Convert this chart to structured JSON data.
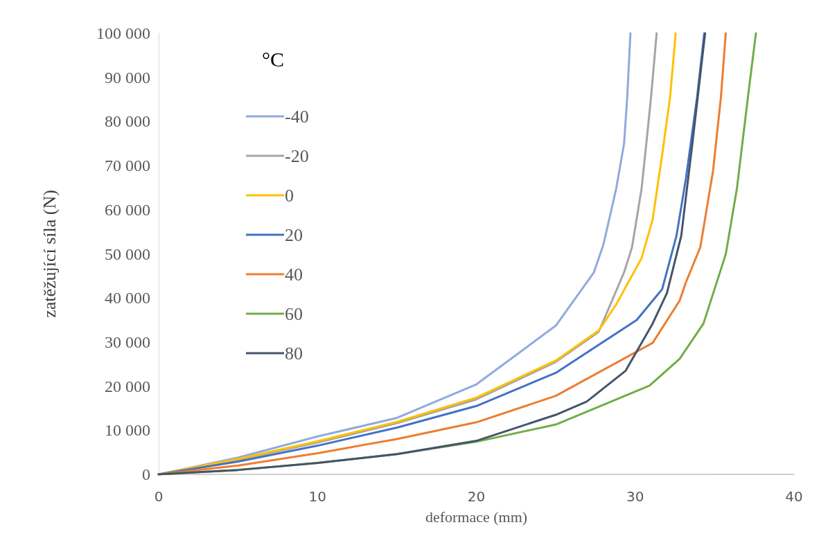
{
  "chart_data": {
    "type": "line",
    "xlabel": "deformace (mm)",
    "ylabel": "zatěžující síla (N)",
    "legend_title": "°C",
    "legend": "top left",
    "grid": false,
    "marker": "none",
    "line_style": "solid",
    "xlim": [
      0,
      40
    ],
    "xticks": [
      0,
      10,
      20,
      30,
      40
    ],
    "ylim": [
      0,
      100000
    ],
    "yticks": [
      0,
      {
        "value": 10000,
        "label": "10 000"
      },
      {
        "value": 20000,
        "label": "20 000"
      },
      {
        "value": 30000,
        "label": "30 000"
      },
      {
        "value": 40000,
        "label": "40 000"
      },
      {
        "value": 50000,
        "label": "50 000"
      },
      {
        "value": 60000,
        "label": "60 000"
      },
      {
        "value": 70000,
        "label": "70 000"
      },
      {
        "value": 80000,
        "label": "80 000"
      },
      {
        "value": 90000,
        "label": "90 000"
      },
      {
        "value": 100000,
        "label": "100 000"
      }
    ],
    "series": [
      {
        "name": "-40",
        "color": "#8faadc",
        "x": [
          0,
          5,
          10,
          15,
          20,
          25,
          27.4,
          28.0,
          28.8,
          29.3,
          29.5,
          29.7
        ],
        "values": [
          0,
          3800,
          8600,
          12800,
          20400,
          33700,
          45800,
          52100,
          64700,
          75000,
          85600,
          100000
        ]
      },
      {
        "name": "-20",
        "color": "#a5a5a5",
        "x": [
          0,
          5,
          10,
          15,
          20,
          25,
          27.7,
          29.3,
          29.8,
          30.4,
          30.7,
          31.0,
          31.35
        ],
        "values": [
          0,
          3300,
          7200,
          11600,
          17000,
          25500,
          32300,
          45800,
          51500,
          64700,
          75000,
          85600,
          100000
        ]
      },
      {
        "name": "0",
        "color": "#ffc000",
        "x": [
          0,
          5,
          10,
          15,
          20,
          25,
          27.7,
          28.8,
          30.4,
          31.1,
          31.7,
          32.2,
          32.55
        ],
        "values": [
          0,
          3500,
          7500,
          11900,
          17400,
          25800,
          32600,
          38500,
          49000,
          57800,
          72500,
          85600,
          100000
        ]
      },
      {
        "name": "20",
        "color": "#4472c4",
        "x": [
          0,
          5,
          10,
          15,
          20,
          25,
          30.1,
          31.7,
          32.6,
          33.2,
          33.9,
          34.35
        ],
        "values": [
          0,
          2900,
          6500,
          10600,
          15500,
          23000,
          35000,
          42000,
          54100,
          67200,
          85600,
          100000
        ]
      },
      {
        "name": "40",
        "color": "#ed7d31",
        "x": [
          0,
          5,
          10,
          15,
          20,
          25,
          31.1,
          32.8,
          33.2,
          34.1,
          34.9,
          35.4,
          35.7
        ],
        "values": [
          0,
          2000,
          4800,
          8000,
          11800,
          17800,
          29800,
          39400,
          43600,
          51500,
          68800,
          85600,
          100000
        ]
      },
      {
        "name": "60",
        "color": "#70ad47",
        "x": [
          0,
          5,
          10,
          15,
          20,
          25,
          30.9,
          32.8,
          34.3,
          35.7,
          36.4,
          37.1,
          37.6
        ],
        "values": [
          0,
          1000,
          2600,
          4600,
          7400,
          11300,
          20100,
          26200,
          34200,
          49900,
          64700,
          85600,
          100000
        ]
      },
      {
        "name": "80",
        "color": "#44546a",
        "x": [
          0,
          5,
          10,
          15,
          20,
          25,
          26.95,
          29.4,
          31.1,
          32.0,
          32.9,
          33.6,
          34.4
        ],
        "values": [
          0,
          1000,
          2600,
          4600,
          7600,
          13500,
          16500,
          23500,
          34200,
          41100,
          54100,
          75000,
          100000
        ]
      }
    ]
  }
}
